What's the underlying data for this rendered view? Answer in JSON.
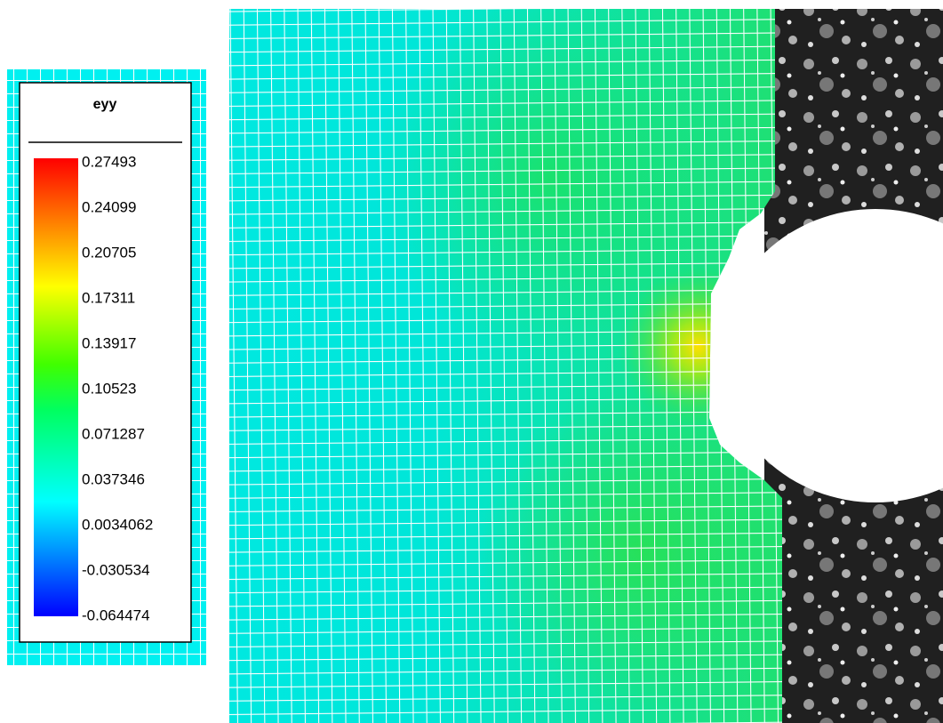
{
  "colorbar": {
    "title": "eyy",
    "labels": [
      0.27493,
      0.24099,
      0.20705,
      0.17311,
      0.13917,
      0.10523,
      0.071287,
      0.037346,
      0.0034062,
      -0.030534,
      -0.064474
    ]
  }
}
